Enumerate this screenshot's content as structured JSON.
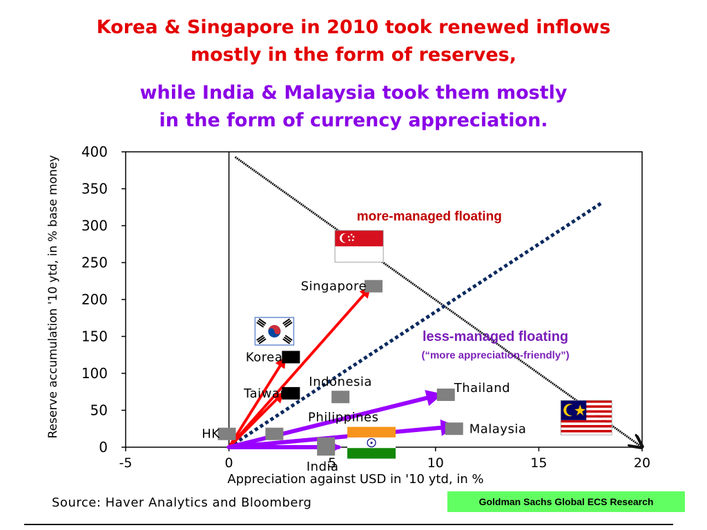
{
  "header": {
    "title_lines": [
      "Korea & Singapore in 2010 took renewed inflows",
      "mostly in the form of reserves,"
    ],
    "subtitle_lines": [
      "while India & Malaysia took them mostly",
      "in the form of currency appreciation."
    ],
    "title_color": "#e30000",
    "subtitle_color": "#8a00e6"
  },
  "chart_data": {
    "type": "scatter",
    "xlabel": "Appreciation against USD in '10 ytd, in %",
    "ylabel": "Reserve accumulation '10 ytd, in % base money",
    "xlim": [
      -5,
      20
    ],
    "ylim": [
      0,
      400
    ],
    "x_ticks": [
      -5,
      0,
      5,
      10,
      15,
      20
    ],
    "y_ticks": [
      0,
      50,
      100,
      150,
      200,
      250,
      300,
      350,
      400
    ],
    "grid": false,
    "points": [
      {
        "name": "HK",
        "x": -0.1,
        "y": 18,
        "color": "#808080",
        "label_anchor": "end",
        "label_dx": -10
      },
      {
        "name": "",
        "x": 2.2,
        "y": 18,
        "color": "#808080"
      },
      {
        "name": "Taiwan",
        "x": 3,
        "y": 73,
        "color": "#000000",
        "label_anchor": "end",
        "label_dx": -4
      },
      {
        "name": "Korea",
        "x": 3,
        "y": 122,
        "color": "#000000",
        "label_anchor": "end",
        "label_dx": -12
      },
      {
        "name": "Singapore",
        "x": 7,
        "y": 218,
        "color": "#808080",
        "label_anchor": "end",
        "label_dx": -10
      },
      {
        "name": "Indonesia",
        "x": 5.4,
        "y": 68,
        "color": "#808080",
        "label_anchor": "middle",
        "label_dx": 0,
        "label_dy": -22
      },
      {
        "name": "Philippines",
        "x": 4.7,
        "y": 5,
        "color": "#808080",
        "label_anchor": "middle",
        "label_dx": 25,
        "label_dy": -38
      },
      {
        "name": "India",
        "x": 4.7,
        "y": -3,
        "color": "#808080",
        "label_anchor": "middle",
        "label_dx": -5,
        "label_dy": 25
      },
      {
        "name": "Thailand",
        "x": 10.5,
        "y": 71,
        "color": "#808080",
        "label_anchor": "start",
        "label_dx": 12,
        "label_dy": -10
      },
      {
        "name": "Malaysia",
        "x": 10.9,
        "y": 25,
        "color": "#808080",
        "label_anchor": "start",
        "label_dx": 22,
        "label_dy": 0
      }
    ],
    "arrows": [
      {
        "from": [
          0,
          0
        ],
        "to": [
          6.8,
          215
        ],
        "color": "#ff0000",
        "target": "Singapore"
      },
      {
        "from": [
          0,
          0
        ],
        "to": [
          2.7,
          120
        ],
        "color": "#ff0000",
        "target": "Korea"
      },
      {
        "from": [
          0,
          0
        ],
        "to": [
          2.6,
          73
        ],
        "color": "#ff0000",
        "target": "Taiwan"
      },
      {
        "from": [
          0,
          0
        ],
        "to": [
          10.2,
          71
        ],
        "color": "#9a00ff",
        "target": "Thailand"
      },
      {
        "from": [
          0,
          0
        ],
        "to": [
          10.9,
          28
        ],
        "color": "#9a00ff",
        "target": "Malaysia"
      },
      {
        "from": [
          0,
          0
        ],
        "to": [
          5.3,
          0
        ],
        "color": "#9a00ff",
        "target": "India"
      }
    ],
    "lines": [
      {
        "name": "managed-boundary",
        "from": [
          0.3,
          393
        ],
        "to": [
          20,
          0
        ],
        "color": "#111111",
        "style": "dashed-fine",
        "arrowhead": true
      },
      {
        "name": "floating-divider",
        "from": [
          0,
          0
        ],
        "to": [
          18,
          330
        ],
        "color": "#0a2a5e",
        "style": "dotted-bold",
        "arrowhead": false
      }
    ],
    "annotations": [
      {
        "text": "more-managed floating",
        "x": 9.7,
        "y": 307,
        "color": "#c00000",
        "size": 19
      },
      {
        "text": "less-managed floating",
        "x": 12.9,
        "y": 144,
        "color": "#7a1fb8",
        "size": 20
      },
      {
        "text": "(“more appreciation-friendly”)",
        "x": 12.9,
        "y": 120,
        "color": "#7a1fb8",
        "size": 15
      }
    ],
    "flags": [
      {
        "icon": "singapore-flag-icon",
        "x": 6.3,
        "y": 272
      },
      {
        "icon": "korea-flag-icon",
        "x": 2.2,
        "y": 157
      },
      {
        "icon": "india-flag-icon",
        "x": 6.9,
        "y": 6
      },
      {
        "icon": "malaysia-flag-icon",
        "x": 17.3,
        "y": 40
      }
    ]
  },
  "footer": {
    "source": "Source: Haver Analytics and Bloomberg",
    "credit": "Goldman Sachs Global ECS Research"
  }
}
